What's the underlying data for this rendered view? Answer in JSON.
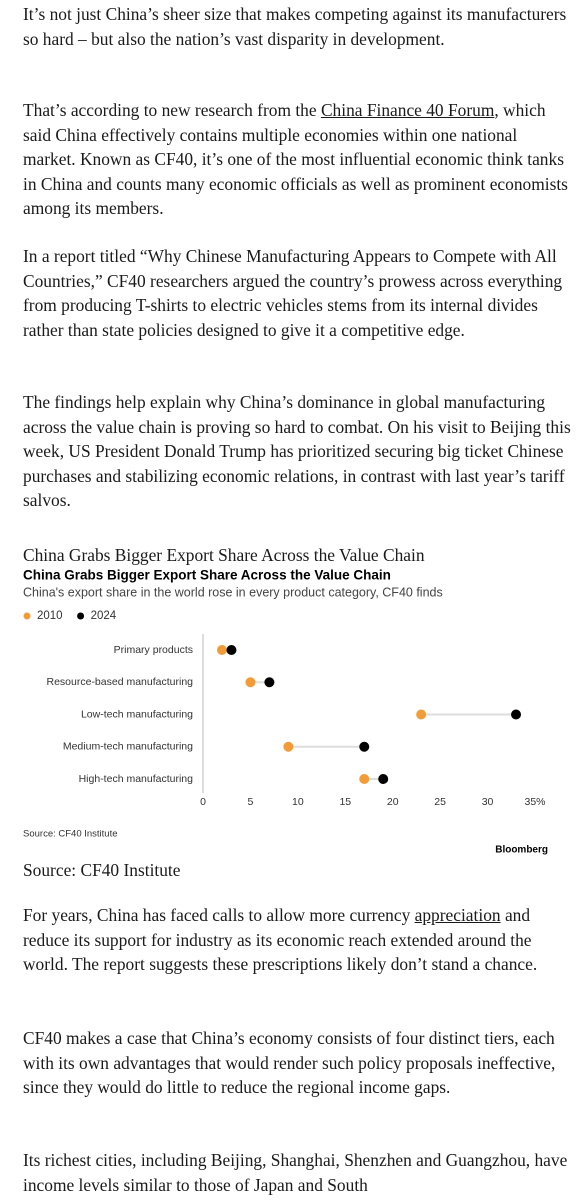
{
  "article": {
    "paragraphs": [
      {
        "text": "It’s not just China’s sheer size that makes competing against its manufacturers so hard – but also the nation’s vast disparity in development."
      },
      {
        "before": "That’s according to new research from the ",
        "link": "China Finance 40 Forum",
        "after": ", which said China effectively contains multiple economies within one national market. Known as CF40, it’s one of the most influential economic think tanks in China and counts many economic officials as well as prominent economists among its members."
      },
      {
        "text": "In a report titled “Why Chinese Manufacturing Appears to Compete with All Countries,” CF40 researchers argued the country’s prowess across everything from producing T-shirts to electric vehicles stems from its internal divides rather than state policies designed to give it a competitive edge."
      },
      {
        "text": "The findings help explain why China’s dominance in global manufacturing across the value chain is proving so hard to combat. On his visit to Beijing this week, US President Donald Trump has prioritized securing big ticket Chinese purchases and stabilizing economic relations, in contrast with last year’s tariff salvos."
      },
      {
        "before": "For years, China has faced calls to allow more currency ",
        "link": "appreciation",
        "after": " and reduce its support for industry as its economic reach extended around the world. The report suggests these prescriptions likely don’t stand a chance."
      },
      {
        "text": "CF40 makes a case that China’s economy consists of four distinct tiers, each with its own advantages that would render such policy proposals ineffective, since they would do little to reduce the regional income gaps."
      },
      {
        "text": "Its richest cities, including Beijing, Shanghai, Shenzhen and Guangzhou, have income levels similar to those of Japan and South"
      }
    ],
    "figure": {
      "caption": "China Grabs Bigger Export Share Across the Value Chain",
      "source": "Source: CF40 Institute"
    }
  },
  "chart_data": {
    "type": "dot",
    "title": "China Grabs Bigger Export Share Across the Value Chain",
    "subtitle": "China's export share in the world rose in every product category, CF40 finds",
    "categories": [
      "Primary products",
      "Resource-based manufacturing",
      "Low-tech manufacturing",
      "Medium-tech manufacturing",
      "High-tech manufacturing"
    ],
    "series": [
      {
        "name": "2010",
        "color": "#f29c38",
        "values": [
          2,
          5,
          23,
          9,
          17
        ]
      },
      {
        "name": "2024",
        "color": "#000000",
        "values": [
          3,
          7,
          33,
          17,
          19
        ]
      }
    ],
    "xlim": [
      0,
      35
    ],
    "xticks": [
      0,
      5,
      10,
      15,
      20,
      25,
      30,
      {
        "value": 35,
        "label": "35%"
      }
    ],
    "source": "Source: CF40 Institute",
    "credit": "Bloomberg"
  }
}
